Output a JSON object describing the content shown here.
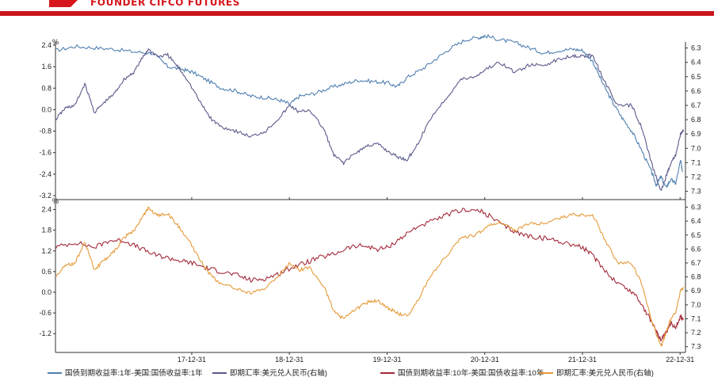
{
  "header": {
    "brand": "FOUNDER CIFCO FUTURES",
    "accent_color": "#c8161d"
  },
  "chart_data": [
    {
      "type": "line",
      "panel": "top",
      "unit_left": "%",
      "x_ticks": [
        "17-12-31",
        "18-12-31",
        "19-12-31",
        "20-12-31",
        "21-12-31",
        "22-12-31"
      ],
      "x_range": [
        2016.6,
        2023.05
      ],
      "y_left_ticks": [
        2.4,
        1.6,
        0.8,
        0.0,
        -0.8,
        -1.6,
        -2.4,
        -3.2
      ],
      "y_left_range": [
        -3.2,
        2.4
      ],
      "y_right_ticks": [
        6.3,
        6.4,
        6.5,
        6.6,
        6.7,
        6.8,
        6.9,
        7.0,
        7.1,
        7.2,
        7.3
      ],
      "y_right_range": [
        6.28,
        7.33
      ],
      "y_right_inverted": true,
      "grid": false,
      "series": [
        {
          "name": "国债到期收益率:1年-美国:国债收益率:1年",
          "axis": "left",
          "color": "#4f7fb0",
          "points": [
            [
              2016.6,
              2.2
            ],
            [
              2016.8,
              2.35
            ],
            [
              2017.0,
              2.3
            ],
            [
              2017.2,
              2.25
            ],
            [
              2017.4,
              2.15
            ],
            [
              2017.6,
              2.1
            ],
            [
              2017.75,
              1.6
            ],
            [
              2017.9,
              1.5
            ],
            [
              2018.0,
              1.4
            ],
            [
              2018.15,
              1.1
            ],
            [
              2018.3,
              0.8
            ],
            [
              2018.45,
              0.7
            ],
            [
              2018.6,
              0.5
            ],
            [
              2018.75,
              0.45
            ],
            [
              2018.9,
              0.35
            ],
            [
              2019.0,
              0.2
            ],
            [
              2019.1,
              0.5
            ],
            [
              2019.25,
              0.6
            ],
            [
              2019.4,
              0.8
            ],
            [
              2019.55,
              0.95
            ],
            [
              2019.7,
              1.1
            ],
            [
              2019.85,
              1.05
            ],
            [
              2020.0,
              1.0
            ],
            [
              2020.1,
              0.85
            ],
            [
              2020.2,
              1.2
            ],
            [
              2020.35,
              1.5
            ],
            [
              2020.5,
              1.9
            ],
            [
              2020.65,
              2.3
            ],
            [
              2020.8,
              2.6
            ],
            [
              2020.95,
              2.7
            ],
            [
              2021.0,
              2.75
            ],
            [
              2021.15,
              2.6
            ],
            [
              2021.3,
              2.5
            ],
            [
              2021.45,
              2.3
            ],
            [
              2021.6,
              2.1
            ],
            [
              2021.75,
              2.2
            ],
            [
              2021.9,
              2.25
            ],
            [
              2022.0,
              2.2
            ],
            [
              2022.1,
              1.8
            ],
            [
              2022.2,
              1.0
            ],
            [
              2022.3,
              0.3
            ],
            [
              2022.4,
              -0.3
            ],
            [
              2022.5,
              -0.8
            ],
            [
              2022.6,
              -1.5
            ],
            [
              2022.7,
              -2.3
            ],
            [
              2022.75,
              -2.8
            ],
            [
              2022.8,
              -2.5
            ],
            [
              2022.85,
              -2.9
            ],
            [
              2022.9,
              -2.6
            ],
            [
              2022.95,
              -2.75
            ],
            [
              2023.0,
              -1.9
            ],
            [
              2023.02,
              -2.3
            ]
          ]
        },
        {
          "name": "即期汇率:美元兑人民币(右轴)",
          "axis": "right",
          "color": "#5a5a8c",
          "points": [
            [
              2016.6,
              6.8
            ],
            [
              2016.7,
              6.72
            ],
            [
              2016.8,
              6.7
            ],
            [
              2016.9,
              6.55
            ],
            [
              2017.0,
              6.75
            ],
            [
              2017.1,
              6.68
            ],
            [
              2017.2,
              6.62
            ],
            [
              2017.3,
              6.52
            ],
            [
              2017.4,
              6.47
            ],
            [
              2017.5,
              6.36
            ],
            [
              2017.55,
              6.31
            ],
            [
              2017.65,
              6.36
            ],
            [
              2017.75,
              6.35
            ],
            [
              2017.85,
              6.43
            ],
            [
              2017.95,
              6.52
            ],
            [
              2018.1,
              6.7
            ],
            [
              2018.2,
              6.8
            ],
            [
              2018.3,
              6.85
            ],
            [
              2018.45,
              6.88
            ],
            [
              2018.6,
              6.92
            ],
            [
              2018.75,
              6.88
            ],
            [
              2018.9,
              6.78
            ],
            [
              2019.0,
              6.7
            ],
            [
              2019.1,
              6.75
            ],
            [
              2019.2,
              6.73
            ],
            [
              2019.35,
              6.87
            ],
            [
              2019.45,
              7.05
            ],
            [
              2019.55,
              7.1
            ],
            [
              2019.7,
              7.02
            ],
            [
              2019.8,
              6.98
            ],
            [
              2019.9,
              6.97
            ],
            [
              2020.0,
              7.02
            ],
            [
              2020.1,
              7.06
            ],
            [
              2020.2,
              7.08
            ],
            [
              2020.3,
              6.98
            ],
            [
              2020.45,
              6.78
            ],
            [
              2020.6,
              6.65
            ],
            [
              2020.75,
              6.52
            ],
            [
              2020.9,
              6.5
            ],
            [
              2021.0,
              6.45
            ],
            [
              2021.15,
              6.4
            ],
            [
              2021.3,
              6.47
            ],
            [
              2021.45,
              6.42
            ],
            [
              2021.6,
              6.42
            ],
            [
              2021.75,
              6.38
            ],
            [
              2021.9,
              6.35
            ],
            [
              2022.0,
              6.36
            ],
            [
              2022.1,
              6.35
            ],
            [
              2022.2,
              6.5
            ],
            [
              2022.35,
              6.7
            ],
            [
              2022.5,
              6.7
            ],
            [
              2022.6,
              6.85
            ],
            [
              2022.7,
              7.1
            ],
            [
              2022.8,
              7.3
            ],
            [
              2022.85,
              7.2
            ],
            [
              2022.9,
              7.1
            ],
            [
              2022.95,
              7.05
            ],
            [
              2023.0,
              6.9
            ],
            [
              2023.03,
              6.88
            ]
          ]
        }
      ]
    },
    {
      "type": "line",
      "panel": "bottom",
      "unit_left": "%",
      "x_ticks": [
        "17-12-31",
        "18-12-31",
        "19-12-31",
        "20-12-31",
        "21-12-31",
        "22-12-31"
      ],
      "x_range": [
        2016.6,
        2023.05
      ],
      "y_left_ticks": [
        2.4,
        1.8,
        1.2,
        0.6,
        0.0,
        -0.6,
        -1.2
      ],
      "y_left_range": [
        -1.7,
        2.55
      ],
      "y_right_ticks": [
        6.3,
        6.4,
        6.5,
        6.6,
        6.7,
        6.8,
        6.9,
        7.0,
        7.1,
        7.2,
        7.3
      ],
      "y_right_range": [
        6.28,
        7.33
      ],
      "y_right_inverted": true,
      "grid": false,
      "series": [
        {
          "name": "国债到期收益率:10年-美国:国债收益率:10年",
          "axis": "left",
          "color": "#a32a3a",
          "points": [
            [
              2016.6,
              1.3
            ],
            [
              2016.8,
              1.45
            ],
            [
              2017.0,
              1.3
            ],
            [
              2017.15,
              1.5
            ],
            [
              2017.3,
              1.5
            ],
            [
              2017.45,
              1.3
            ],
            [
              2017.6,
              1.1
            ],
            [
              2017.75,
              1.0
            ],
            [
              2017.9,
              0.9
            ],
            [
              2018.0,
              0.85
            ],
            [
              2018.15,
              0.7
            ],
            [
              2018.3,
              0.6
            ],
            [
              2018.45,
              0.5
            ],
            [
              2018.6,
              0.35
            ],
            [
              2018.75,
              0.4
            ],
            [
              2018.9,
              0.55
            ],
            [
              2019.0,
              0.7
            ],
            [
              2019.15,
              0.85
            ],
            [
              2019.3,
              1.0
            ],
            [
              2019.45,
              1.1
            ],
            [
              2019.6,
              1.3
            ],
            [
              2019.75,
              1.35
            ],
            [
              2019.9,
              1.25
            ],
            [
              2020.0,
              1.3
            ],
            [
              2020.15,
              1.6
            ],
            [
              2020.3,
              1.9
            ],
            [
              2020.5,
              2.1
            ],
            [
              2020.65,
              2.3
            ],
            [
              2020.8,
              2.4
            ],
            [
              2020.95,
              2.35
            ],
            [
              2021.05,
              2.2
            ],
            [
              2021.2,
              1.9
            ],
            [
              2021.35,
              1.7
            ],
            [
              2021.5,
              1.6
            ],
            [
              2021.65,
              1.55
            ],
            [
              2021.8,
              1.45
            ],
            [
              2021.95,
              1.35
            ],
            [
              2022.05,
              1.2
            ],
            [
              2022.15,
              0.9
            ],
            [
              2022.3,
              0.4
            ],
            [
              2022.45,
              0.1
            ],
            [
              2022.55,
              -0.1
            ],
            [
              2022.65,
              -0.6
            ],
            [
              2022.75,
              -1.1
            ],
            [
              2022.8,
              -1.4
            ],
            [
              2022.85,
              -1.2
            ],
            [
              2022.9,
              -0.9
            ],
            [
              2022.95,
              -1.0
            ],
            [
              2023.0,
              -0.7
            ],
            [
              2023.03,
              -0.8
            ]
          ]
        },
        {
          "name": "即期汇率:美元兑人民币(右轴)",
          "axis": "right",
          "color": "#e59a3a",
          "points": [
            [
              2016.6,
              6.8
            ],
            [
              2016.7,
              6.72
            ],
            [
              2016.8,
              6.7
            ],
            [
              2016.9,
              6.55
            ],
            [
              2017.0,
              6.75
            ],
            [
              2017.1,
              6.68
            ],
            [
              2017.2,
              6.62
            ],
            [
              2017.3,
              6.52
            ],
            [
              2017.4,
              6.47
            ],
            [
              2017.5,
              6.36
            ],
            [
              2017.55,
              6.31
            ],
            [
              2017.65,
              6.36
            ],
            [
              2017.75,
              6.35
            ],
            [
              2017.85,
              6.43
            ],
            [
              2017.95,
              6.52
            ],
            [
              2018.1,
              6.7
            ],
            [
              2018.2,
              6.8
            ],
            [
              2018.3,
              6.85
            ],
            [
              2018.45,
              6.88
            ],
            [
              2018.6,
              6.92
            ],
            [
              2018.75,
              6.88
            ],
            [
              2018.9,
              6.78
            ],
            [
              2019.0,
              6.7
            ],
            [
              2019.1,
              6.75
            ],
            [
              2019.2,
              6.73
            ],
            [
              2019.35,
              6.87
            ],
            [
              2019.45,
              7.05
            ],
            [
              2019.55,
              7.1
            ],
            [
              2019.7,
              7.02
            ],
            [
              2019.8,
              6.98
            ],
            [
              2019.9,
              6.97
            ],
            [
              2020.0,
              7.02
            ],
            [
              2020.1,
              7.06
            ],
            [
              2020.2,
              7.08
            ],
            [
              2020.3,
              6.98
            ],
            [
              2020.45,
              6.78
            ],
            [
              2020.6,
              6.65
            ],
            [
              2020.75,
              6.52
            ],
            [
              2020.9,
              6.5
            ],
            [
              2021.0,
              6.45
            ],
            [
              2021.15,
              6.4
            ],
            [
              2021.3,
              6.47
            ],
            [
              2021.45,
              6.42
            ],
            [
              2021.6,
              6.42
            ],
            [
              2021.75,
              6.38
            ],
            [
              2021.9,
              6.35
            ],
            [
              2022.0,
              6.36
            ],
            [
              2022.1,
              6.35
            ],
            [
              2022.2,
              6.5
            ],
            [
              2022.35,
              6.7
            ],
            [
              2022.5,
              6.7
            ],
            [
              2022.6,
              6.85
            ],
            [
              2022.7,
              7.1
            ],
            [
              2022.8,
              7.3
            ],
            [
              2022.85,
              7.2
            ],
            [
              2022.9,
              7.1
            ],
            [
              2022.95,
              7.05
            ],
            [
              2023.0,
              6.9
            ],
            [
              2023.03,
              6.88
            ]
          ]
        }
      ]
    }
  ]
}
